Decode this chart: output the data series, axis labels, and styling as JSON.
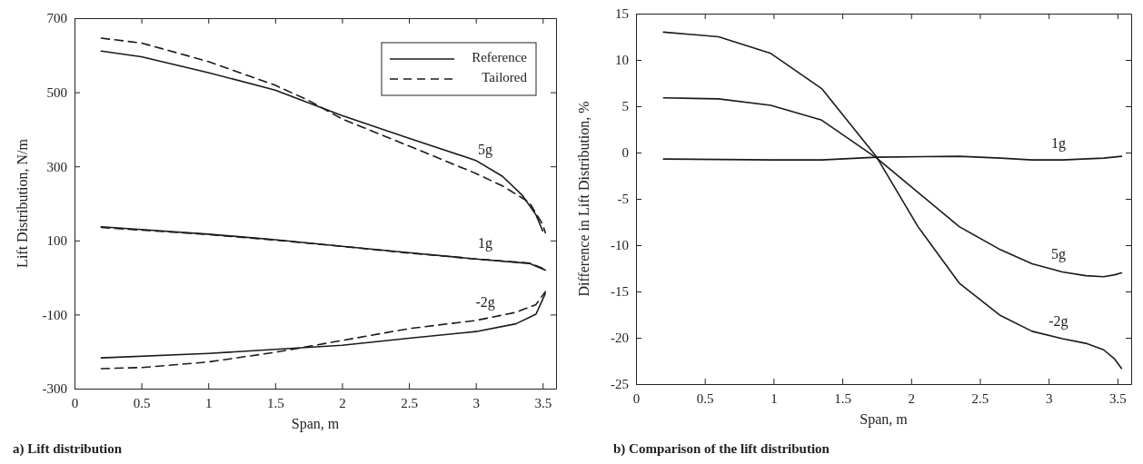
{
  "chart_data": [
    {
      "type": "line",
      "title": "a) Lift distribution",
      "xlabel": "Span, m",
      "ylabel": "Lift Distribution, N/m",
      "xlim": [
        0,
        3.6
      ],
      "xticks": [
        0,
        0.5,
        1,
        1.5,
        2,
        2.5,
        3,
        3.5
      ],
      "ylim": [
        -300,
        700
      ],
      "yticks": [
        -300,
        -100,
        100,
        300,
        500,
        700
      ],
      "grid": false,
      "legend": "top right",
      "series": [
        {
          "name": "Reference",
          "color": "#1a1a1a",
          "line_style": "solid",
          "x": [
            0.2,
            0.5,
            1.0,
            1.5,
            2.0,
            2.5,
            3.0,
            3.2,
            3.35,
            3.45,
            3.5
          ],
          "values": [
            611,
            596,
            553,
            506,
            437,
            376,
            316,
            273,
            221,
            169,
            126
          ]
        },
        {
          "name": "Tailored",
          "color": "#1a1a1a",
          "line_style": "dashed",
          "x": [
            0.2,
            0.5,
            1.0,
            1.5,
            1.75,
            2.0,
            2.5,
            3.0,
            3.2,
            3.4,
            3.5,
            3.52
          ],
          "values": [
            646,
            633,
            583,
            519,
            478,
            428,
            355,
            281,
            247,
            203,
            143,
            121
          ]
        },
        {
          "color": "#1a1a1a",
          "line_style": "solid",
          "x": [
            0.2,
            1.0,
            1.5,
            2.0,
            2.5,
            3.0,
            3.4,
            3.52
          ],
          "values": [
            137,
            117,
            102,
            84,
            67,
            50,
            38,
            20
          ]
        },
        {
          "color": "#1a1a1a",
          "line_style": "dashed",
          "x": [
            0.2,
            1.0,
            1.5,
            2.0,
            2.5,
            3.0,
            3.4,
            3.5
          ],
          "values": [
            135,
            116,
            101,
            84,
            66,
            50,
            39,
            25
          ]
        },
        {
          "color": "#1a1a1a",
          "line_style": "solid",
          "x": [
            0.2,
            1.0,
            1.5,
            2.0,
            2.5,
            3.0,
            3.3,
            3.45,
            3.52
          ],
          "values": [
            -217,
            -205,
            -194,
            -183,
            -164,
            -146,
            -125,
            -99,
            -43
          ]
        },
        {
          "color": "#1a1a1a",
          "line_style": "dashed",
          "x": [
            0.2,
            0.5,
            1.0,
            1.5,
            2.0,
            2.5,
            3.0,
            3.3,
            3.45,
            3.52
          ],
          "values": [
            -246,
            -243,
            -228,
            -202,
            -170,
            -138,
            -116,
            -94,
            -73,
            -38
          ]
        }
      ],
      "annotations": [
        "5g",
        "1g",
        "-2g"
      ]
    },
    {
      "type": "line",
      "title": "b) Comparison of the lift distribution",
      "xlabel": "Span, m",
      "ylabel": "Difference in Lift Distribution, %",
      "xlim": [
        0,
        3.6
      ],
      "xticks": [
        0,
        0.5,
        1,
        1.5,
        2,
        2.5,
        3,
        3.5
      ],
      "ylim": [
        -25,
        15
      ],
      "yticks": [
        -25,
        -20,
        -15,
        -10,
        -5,
        0,
        5,
        10,
        15
      ],
      "grid": false,
      "series": [
        {
          "name": "1g",
          "color": "#1a1a1a",
          "line_style": "solid",
          "x": [
            0.2,
            1.0,
            1.35,
            1.75,
            2.35,
            2.65,
            2.88,
            3.1,
            3.4,
            3.53
          ],
          "values": [
            -0.7,
            -0.8,
            -0.8,
            -0.5,
            -0.4,
            -0.6,
            -0.8,
            -0.8,
            -0.6,
            -0.4
          ]
        },
        {
          "name": "5g",
          "color": "#1a1a1a",
          "line_style": "solid",
          "x": [
            0.2,
            0.6,
            0.98,
            1.35,
            1.75,
            2.05,
            2.35,
            2.65,
            2.88,
            3.1,
            3.27,
            3.4,
            3.48,
            3.53
          ],
          "values": [
            5.9,
            5.8,
            5.1,
            3.5,
            -0.6,
            -4.3,
            -8.0,
            -10.5,
            -12.0,
            -12.9,
            -13.3,
            -13.4,
            -13.2,
            -13.0
          ]
        },
        {
          "name": "-2g",
          "color": "#1a1a1a",
          "line_style": "solid",
          "x": [
            0.2,
            0.6,
            0.98,
            1.35,
            1.75,
            2.05,
            2.35,
            2.65,
            2.88,
            3.1,
            3.27,
            3.4,
            3.48,
            3.53
          ],
          "values": [
            13.0,
            12.5,
            10.7,
            6.9,
            -0.5,
            -8.0,
            -14.1,
            -17.6,
            -19.3,
            -20.1,
            -20.6,
            -21.3,
            -22.3,
            -23.3
          ]
        }
      ],
      "legend": false
    }
  ]
}
